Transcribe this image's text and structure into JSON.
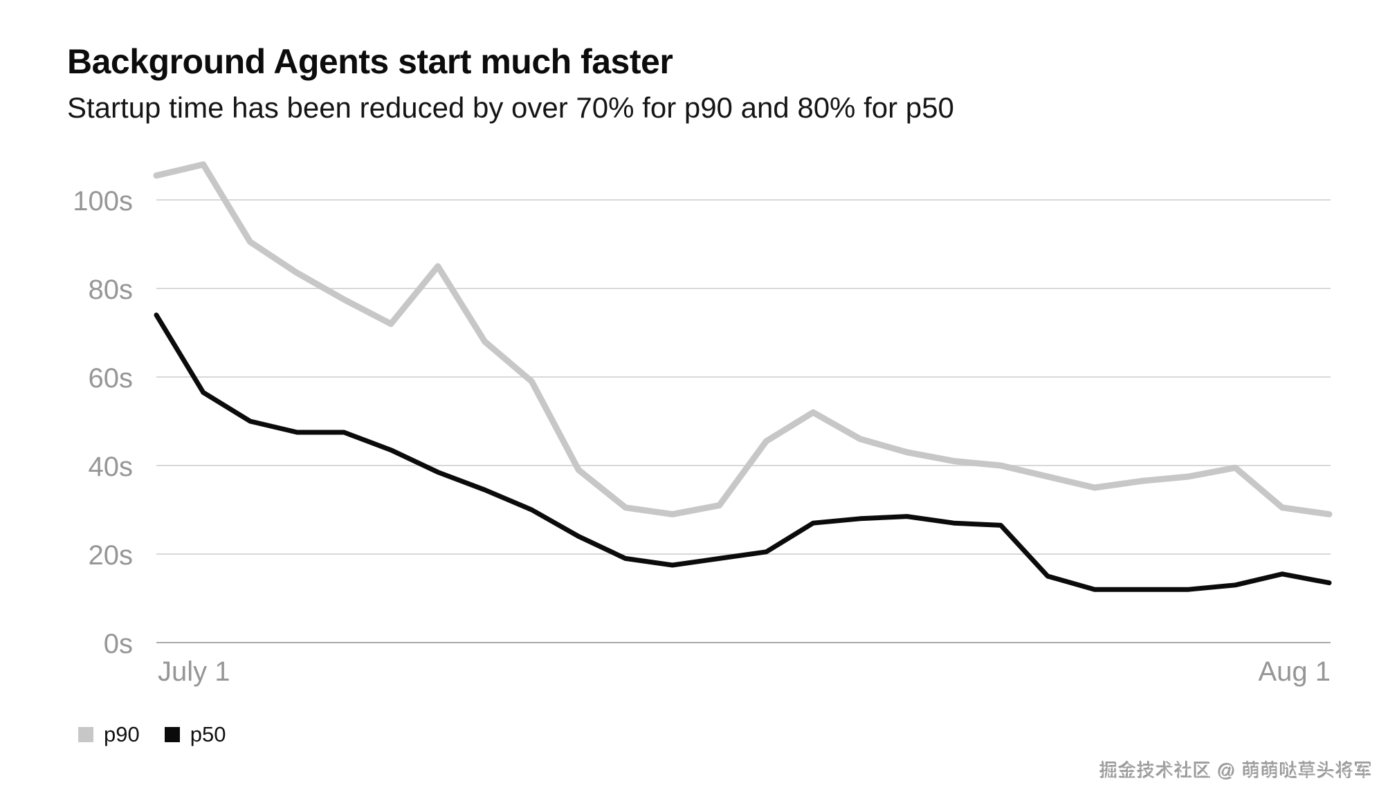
{
  "page": {
    "title": "Background Agents start much faster",
    "subtitle": "Startup time has been reduced by over 70% for p90 and 80% for p50"
  },
  "chart_data": {
    "type": "line",
    "title": "Background Agents start much faster",
    "subtitle": "Startup time has been reduced by over 70% for p90 and 80% for p50",
    "x_axis": {
      "tick_labels": [
        "July 1",
        "Aug 1"
      ],
      "note": "26 evenly spaced points spanning July 1 through Aug 1"
    },
    "y_axis": {
      "unit": "seconds",
      "tick_values": [
        0,
        20,
        40,
        60,
        80,
        100
      ],
      "tick_labels": [
        "0s",
        "20s",
        "40s",
        "60s",
        "80s",
        "100s"
      ],
      "ylim": [
        0,
        112
      ]
    },
    "grid": "horizontal",
    "legend_position": "bottom-left",
    "series": [
      {
        "name": "p90",
        "color": "#c7c7c7",
        "values": [
          105.5,
          108,
          90.5,
          83.5,
          77.5,
          72,
          85,
          68,
          59,
          39,
          30.5,
          29,
          31,
          45.5,
          52,
          46,
          43,
          41,
          40,
          37.5,
          35,
          36.5,
          37.5,
          39.5,
          30.5,
          29
        ]
      },
      {
        "name": "p50",
        "color": "#0b0b0b",
        "values": [
          74,
          56.5,
          50,
          47.5,
          47.5,
          43.5,
          38.5,
          34.5,
          30,
          24,
          19,
          17.5,
          19,
          20.5,
          27,
          28,
          28.5,
          27,
          26.5,
          15,
          12,
          12,
          12,
          13,
          15.5,
          13.5
        ]
      }
    ]
  },
  "legend": {
    "items": [
      {
        "label": "p90",
        "color": "#c7c7c7"
      },
      {
        "label": "p50",
        "color": "#0b0b0b"
      }
    ]
  },
  "watermark": "掘金技术社区 @ 萌萌哒草头将军",
  "colors": {
    "grid_line": "#d8d8d8",
    "axis_line": "#a9a9a9",
    "tick_text": "#969696",
    "title_text": "#0c0c0c"
  }
}
